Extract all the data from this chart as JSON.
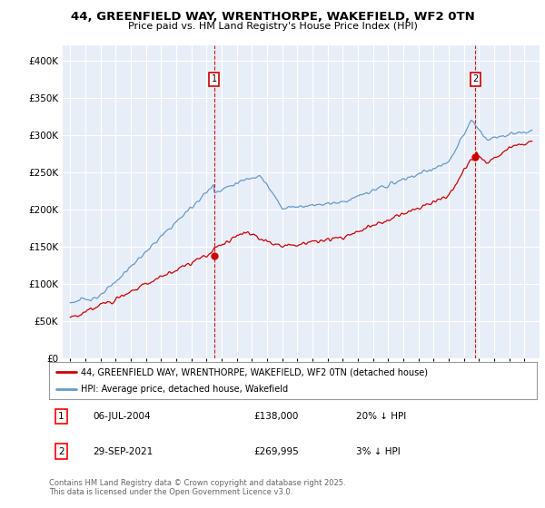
{
  "title1": "44, GREENFIELD WAY, WRENTHORPE, WAKEFIELD, WF2 0TN",
  "title2": "Price paid vs. HM Land Registry's House Price Index (HPI)",
  "legend_line1": "44, GREENFIELD WAY, WRENTHORPE, WAKEFIELD, WF2 0TN (detached house)",
  "legend_line2": "HPI: Average price, detached house, Wakefield",
  "annotation1_date": "06-JUL-2004",
  "annotation1_price": "£138,000",
  "annotation1_hpi": "20% ↓ HPI",
  "annotation2_date": "29-SEP-2021",
  "annotation2_price": "£269,995",
  "annotation2_hpi": "3% ↓ HPI",
  "footer": "Contains HM Land Registry data © Crown copyright and database right 2025.\nThis data is licensed under the Open Government Licence v3.0.",
  "bg_color": "#e8eef8",
  "red_color": "#cc0000",
  "blue_color": "#6699cc",
  "grid_color": "#ffffff",
  "ylim": [
    0,
    420000
  ],
  "yticks": [
    0,
    50000,
    100000,
    150000,
    200000,
    250000,
    300000,
    350000,
    400000
  ],
  "sale1_x": 2004.5,
  "sale1_y": 138000,
  "sale2_x": 2021.75,
  "sale2_y": 269995,
  "xmin": 1994.5,
  "xmax": 2026.0
}
